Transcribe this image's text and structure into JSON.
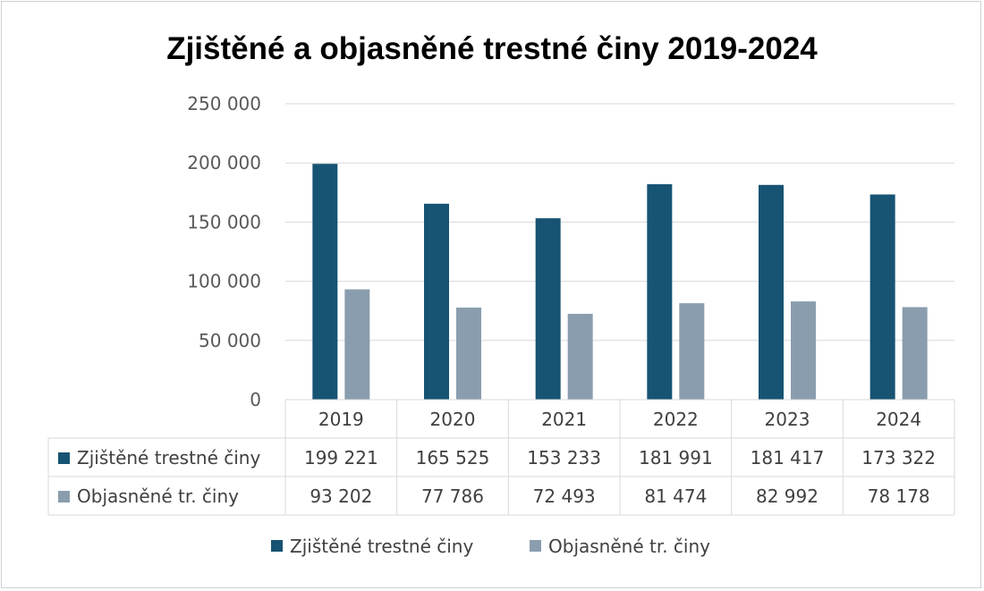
{
  "chart_data": {
    "type": "bar",
    "title": "Zjištěné a objasněné trestné činy 2019-2024",
    "categories": [
      "2019",
      "2020",
      "2021",
      "2022",
      "2023",
      "2024"
    ],
    "series": [
      {
        "name": "Zjištěné trestné činy",
        "values": [
          199221,
          165525,
          153233,
          181991,
          181417,
          173322
        ],
        "value_labels": [
          "199 221",
          "165 525",
          "153 233",
          "181 991",
          "181 417",
          "173 322"
        ],
        "color": "#175373"
      },
      {
        "name": "Objasněné tr. činy",
        "values": [
          93202,
          77786,
          72493,
          81474,
          82992,
          78178
        ],
        "value_labels": [
          "93 202",
          "77 786",
          "72 493",
          "81 474",
          "82 992",
          "78 178"
        ],
        "color": "#8a9dae"
      }
    ],
    "ylim": [
      0,
      250000
    ],
    "yticks": [
      0,
      50000,
      100000,
      150000,
      200000,
      250000
    ],
    "ytick_labels": [
      "0",
      "50 000",
      "100 000",
      "150 000",
      "200 000",
      "250 000"
    ],
    "grid": true,
    "data_table": true,
    "legend_position": "bottom"
  }
}
